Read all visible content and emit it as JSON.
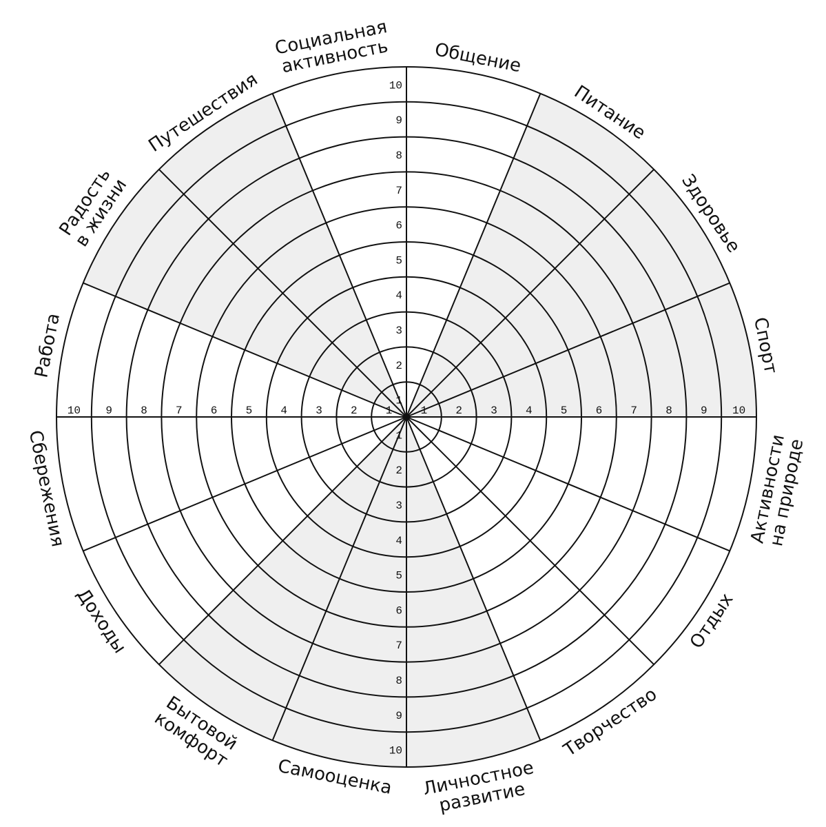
{
  "scale": [
    1,
    2,
    3,
    4,
    5,
    6,
    7,
    8,
    9,
    10
  ],
  "sectors": [
    {
      "lines": [
        "Общение"
      ],
      "shaded": false
    },
    {
      "lines": [
        "Питание"
      ],
      "shaded": true
    },
    {
      "lines": [
        "Здоровье"
      ],
      "shaded": true
    },
    {
      "lines": [
        "Спорт"
      ],
      "shaded": true
    },
    {
      "lines": [
        "Активности",
        "на природе"
      ],
      "shaded": false
    },
    {
      "lines": [
        "Отдых"
      ],
      "shaded": false
    },
    {
      "lines": [
        "Творчество"
      ],
      "shaded": false
    },
    {
      "lines": [
        "Личностное",
        "развитие"
      ],
      "shaded": true
    },
    {
      "lines": [
        "Самооценка"
      ],
      "shaded": true
    },
    {
      "lines": [
        "Бытовой",
        "комфорт"
      ],
      "shaded": true
    },
    {
      "lines": [
        "Доходы"
      ],
      "shaded": false
    },
    {
      "lines": [
        "Сбережения"
      ],
      "shaded": false
    },
    {
      "lines": [
        "Работа"
      ],
      "shaded": false
    },
    {
      "lines": [
        "Радость",
        "в жизни"
      ],
      "shaded": true
    },
    {
      "lines": [
        "Путешествия"
      ],
      "shaded": true
    },
    {
      "lines": [
        "Социальная",
        "активность"
      ],
      "shaded": false
    }
  ]
}
